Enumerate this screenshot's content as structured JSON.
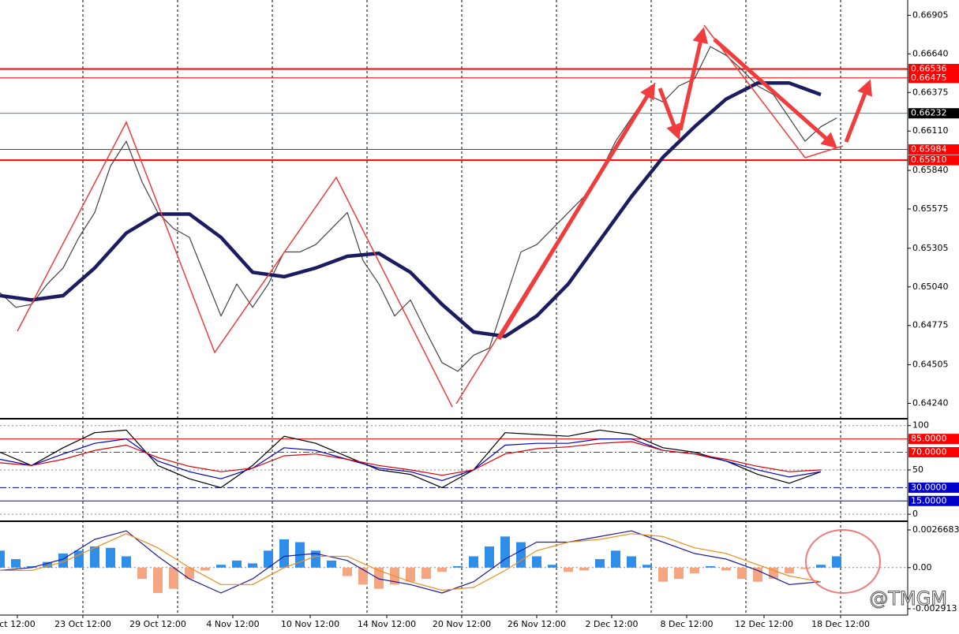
{
  "watermark": "@TMGM",
  "chart_data": [
    {
      "type": "line",
      "xlim": [
        0,
        115
      ],
      "ylim": [
        0.6414,
        0.6701
      ],
      "xgrid": [
        10.5,
        22.5,
        34.5,
        46.5,
        58.5,
        70.5,
        82.5,
        94.5,
        106.5
      ],
      "yticks": [
        {
          "value": 0.66905,
          "label": "0.66905"
        },
        {
          "value": 0.6664,
          "label": "0.66640"
        },
        {
          "value": 0.66375,
          "label": "0.66375"
        },
        {
          "value": 0.6611,
          "label": "0.66110"
        },
        {
          "value": 0.6584,
          "label": "0.65840"
        },
        {
          "value": 0.65575,
          "label": "0.65575"
        },
        {
          "value": 0.65305,
          "label": "0.65305"
        },
        {
          "value": 0.6504,
          "label": "0.65040"
        },
        {
          "value": 0.64775,
          "label": "0.64775"
        },
        {
          "value": 0.64505,
          "label": "0.64505"
        },
        {
          "value": 0.6424,
          "label": "0.64240"
        }
      ],
      "grid": false,
      "x": [
        0,
        2,
        4,
        6,
        8,
        10,
        12,
        14,
        16,
        18,
        20,
        22,
        24,
        26,
        28,
        30,
        32,
        34,
        36,
        38,
        40,
        42,
        44,
        46,
        48,
        50,
        52,
        54,
        56,
        58,
        60,
        62,
        64,
        66,
        68,
        70,
        72,
        74,
        76,
        78,
        80,
        82,
        84,
        86,
        88,
        90,
        92,
        94,
        96,
        98,
        100,
        102,
        104,
        106
      ],
      "series": [
        {
          "color": "#444444",
          "thick": false,
          "values": [
            0.65,
            0.649,
            0.6492,
            0.6506,
            0.6517,
            0.6538,
            0.6555,
            0.6587,
            0.6604,
            0.6576,
            0.6555,
            0.6544,
            0.6538,
            0.6511,
            0.6484,
            0.6506,
            0.649,
            0.6506,
            0.6528,
            0.6528,
            0.6533,
            0.6544,
            0.6555,
            0.6522,
            0.6506,
            0.6484,
            0.6495,
            0.6473,
            0.6452,
            0.6446,
            0.6457,
            0.6462,
            0.6495,
            0.6528,
            0.6533,
            0.6544,
            0.6555,
            0.6566,
            0.6582,
            0.6604,
            0.662,
            0.6636,
            0.6631,
            0.6642,
            0.6647,
            0.6669,
            0.6663,
            0.6653,
            0.6642,
            0.6636,
            0.662,
            0.6604,
            0.6614,
            0.662
          ]
        },
        {
          "color": "#1c1c60",
          "thick": true,
          "x": [
            0,
            4,
            8,
            12,
            16,
            20,
            24,
            28,
            32,
            36,
            40,
            44,
            48,
            52,
            56,
            60,
            64,
            68,
            72,
            76,
            80,
            84,
            88,
            92,
            96,
            100,
            104
          ],
          "values": [
            0.6498,
            0.6495,
            0.6498,
            0.6517,
            0.6541,
            0.6554,
            0.6554,
            0.6538,
            0.6514,
            0.6511,
            0.6517,
            0.6525,
            0.6527,
            0.6514,
            0.6492,
            0.6473,
            0.647,
            0.6484,
            0.6506,
            0.6536,
            0.6566,
            0.6593,
            0.6614,
            0.6633,
            0.6644,
            0.6644,
            0.6636
          ]
        }
      ],
      "levels": [
        {
          "value": 0.66536,
          "label": "0.66536",
          "color": "#ff0000",
          "label_bg": "#ff0000",
          "thick": true,
          "dash": false
        },
        {
          "value": 0.66475,
          "label": "0.66475",
          "color": "#ff0000",
          "label_bg": "#ff0000",
          "thick": false,
          "dash": false
        },
        {
          "value": 0.66232,
          "label": "0.66232",
          "color": "#4a7fd0",
          "label_bg": "#000000",
          "thick": false,
          "dash": false
        },
        {
          "value": 0.65984,
          "label": "0.65984",
          "color": "#ff0000",
          "label_bg": "#ff0000",
          "thick": false,
          "dash": false
        },
        {
          "value": 0.6591,
          "label": "0.65910",
          "color": "#ff0000",
          "label_bg": "#ff0000",
          "thick": true,
          "dash": false
        }
      ]
    },
    {
      "type": "line",
      "xlim": [
        0,
        115
      ],
      "ylim": [
        -7,
        106
      ],
      "yticks": [
        100,
        50,
        0
      ],
      "grid": true,
      "x": [
        0,
        4,
        8,
        12,
        16,
        20,
        24,
        28,
        32,
        36,
        40,
        44,
        48,
        52,
        56,
        60,
        64,
        68,
        72,
        76,
        80,
        84,
        88,
        92,
        96,
        100,
        104
      ],
      "series": [
        {
          "color": "#000000",
          "thick": false,
          "values": [
            70,
            55,
            75,
            92,
            95,
            55,
            40,
            30,
            55,
            88,
            80,
            65,
            50,
            45,
            30,
            50,
            92,
            90,
            88,
            95,
            90,
            75,
            70,
            60,
            45,
            35,
            48
          ]
        },
        {
          "color": "#0000cc",
          "thick": false,
          "values": [
            62,
            55,
            68,
            80,
            85,
            60,
            48,
            40,
            52,
            75,
            72,
            62,
            52,
            48,
            38,
            50,
            78,
            80,
            80,
            85,
            85,
            72,
            68,
            60,
            50,
            42,
            48
          ]
        },
        {
          "color": "#dd0000",
          "thick": false,
          "values": [
            58,
            55,
            62,
            72,
            78,
            64,
            54,
            48,
            52,
            66,
            68,
            62,
            55,
            50,
            44,
            50,
            68,
            74,
            76,
            80,
            82,
            72,
            68,
            62,
            54,
            48,
            50
          ]
        }
      ],
      "levels": [
        {
          "value": 85,
          "label": "85.0000",
          "color": "#ff0000",
          "label_bg": "#ff0000",
          "thick": false,
          "dash": false
        },
        {
          "value": 70,
          "label": "70.0000",
          "color": "#ff0000",
          "label_bg": "#ff0000",
          "thick": false,
          "dash": true
        },
        {
          "value": 30,
          "label": "30.0000",
          "color": "#0000cc",
          "label_bg": "#0000cc",
          "thick": false,
          "dash": true
        },
        {
          "value": 15,
          "label": "15.0000",
          "color": "#0000cc",
          "label_bg": "#0000cc",
          "thick": false,
          "dash": false
        }
      ]
    },
    {
      "type": "bar",
      "xlim": [
        0,
        115
      ],
      "ylim": [
        -0.00336,
        0.00317
      ],
      "xticks": [
        {
          "value": 2.2,
          "label": "ct 12:00"
        },
        {
          "value": 10.5,
          "label": "23 Oct 12:00"
        },
        {
          "value": 20,
          "label": "29 Oct 12:00"
        },
        {
          "value": 29.5,
          "label": "4 Nov 12:00"
        },
        {
          "value": 39.3,
          "label": "10 Nov 12:00"
        },
        {
          "value": 49,
          "label": "14 Nov 12:00"
        },
        {
          "value": 58.5,
          "label": "20 Nov 12:00"
        },
        {
          "value": 68,
          "label": "26 Nov 12:00"
        },
        {
          "value": 77.5,
          "label": "2 Dec 12:00"
        },
        {
          "value": 87,
          "label": "8 Dec 12:00"
        },
        {
          "value": 96.8,
          "label": "12 Dec 12:00"
        },
        {
          "value": 106.5,
          "label": "18 Dec 12:00"
        }
      ],
      "yticks": [
        0.0026683,
        {
          "value": 0,
          "label": "0.00"
        },
        -0.002913
      ],
      "grid": false,
      "x": [
        0,
        2,
        4,
        6,
        8,
        10,
        12,
        14,
        16,
        18,
        20,
        22,
        24,
        26,
        28,
        30,
        32,
        34,
        36,
        38,
        40,
        42,
        44,
        46,
        48,
        50,
        52,
        54,
        56,
        58,
        60,
        62,
        64,
        66,
        68,
        70,
        72,
        74,
        76,
        78,
        80,
        82,
        84,
        86,
        88,
        90,
        92,
        94,
        96,
        98,
        100,
        102,
        104,
        106
      ],
      "values": [
        0.0012,
        0.0006,
        0.0001,
        0.0004,
        0.001,
        0.0012,
        0.0015,
        0.0014,
        0.0008,
        -0.0008,
        -0.0018,
        -0.0015,
        -0.0008,
        -0.0002,
        0.0002,
        0.0005,
        0.0003,
        0.0012,
        0.002,
        0.0018,
        0.0012,
        0.0005,
        -0.0006,
        -0.0012,
        -0.0015,
        -0.0012,
        -0.001,
        -0.0008,
        -0.0003,
        0.0001,
        0.0008,
        0.0015,
        0.0022,
        0.0018,
        0.0008,
        0.0002,
        -0.0003,
        -0.0002,
        0.0006,
        0.0012,
        0.0008,
        0.0002,
        -0.001,
        -0.0008,
        -0.0004,
        0.0001,
        -0.0002,
        -0.0008,
        -0.001,
        -0.0008,
        -0.0004,
        -0.0001,
        0.0002,
        0.0008
      ],
      "pos_color": "#2f8fe8",
      "neg_color": "#f4a582",
      "series": [
        {
          "color": "#1c1c9c",
          "thick": false,
          "x": [
            0,
            4,
            8,
            12,
            16,
            20,
            24,
            28,
            32,
            36,
            40,
            44,
            48,
            52,
            56,
            60,
            64,
            68,
            72,
            76,
            80,
            84,
            88,
            92,
            96,
            100,
            104
          ],
          "values": [
            -0.0002,
            0,
            0.0006,
            0.002,
            0.0026,
            0.0008,
            -0.0008,
            -0.0018,
            -0.0008,
            0.0008,
            0.001,
            0.0005,
            -0.0008,
            -0.0012,
            -0.0018,
            -0.001,
            0.0006,
            0.0018,
            0.0018,
            0.0022,
            0.0026,
            0.0018,
            0.001,
            0.0006,
            -0.0002,
            -0.0012,
            -0.001
          ]
        },
        {
          "color": "#f08c1c",
          "thick": false,
          "x": [
            0,
            4,
            8,
            12,
            16,
            20,
            24,
            28,
            32,
            36,
            40,
            44,
            48,
            52,
            56,
            60,
            64,
            68,
            72,
            76,
            80,
            84,
            88,
            92,
            96,
            100,
            104
          ],
          "values": [
            -0.0002,
            -0.0002,
            0.0004,
            0.0014,
            0.0024,
            0.0014,
            0,
            -0.0012,
            -0.0012,
            0,
            0.0008,
            0.0008,
            -0.0002,
            -0.001,
            -0.0016,
            -0.0014,
            -0.0002,
            0.0012,
            0.0018,
            0.002,
            0.0024,
            0.0022,
            0.0014,
            0.001,
            0.0002,
            -0.0006,
            -0.001
          ]
        }
      ]
    }
  ]
}
